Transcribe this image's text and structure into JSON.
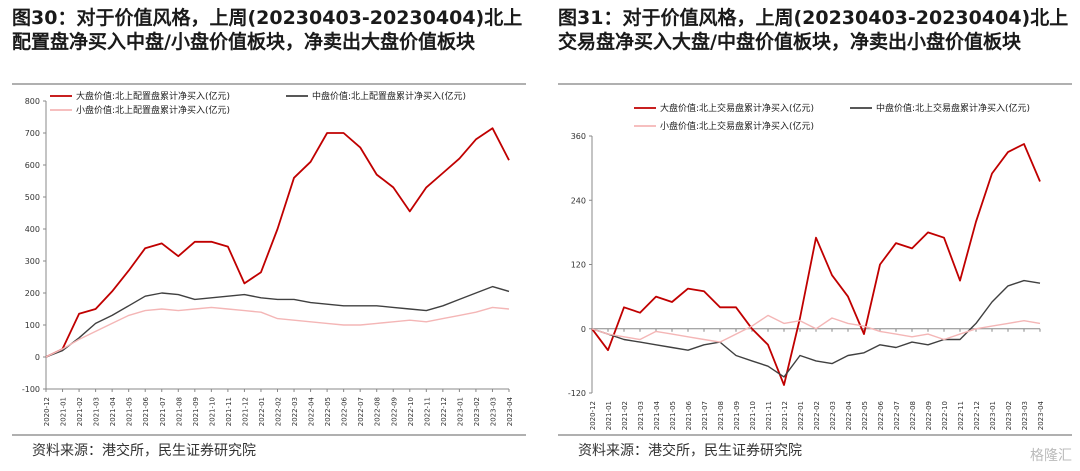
{
  "panels": [
    {
      "title": "图30：对于价值风格，上周(20230403-20230404)北上配置盘净买入中盘/小盘价值板块，净卖出大盘价值板块",
      "source": "资料来源：港交所，民生证券研究院"
    },
    {
      "title": "图31：对于价值风格，上周(20230403-20230404)北上交易盘净买入大盘/中盘价值板块，净卖出小盘价值板块",
      "source": "资料来源：港交所，民生证券研究院"
    }
  ],
  "watermark": "格隆汇",
  "chart_data": [
    {
      "type": "line",
      "title": "",
      "ylim": [
        -100,
        800
      ],
      "yticks": [
        -100,
        0,
        100,
        200,
        300,
        400,
        500,
        600,
        700,
        800
      ],
      "xlabels": [
        "2020-12",
        "2021-01",
        "2021-02",
        "2021-03",
        "2021-04",
        "2021-05",
        "2021-06",
        "2021-07",
        "2021-08",
        "2021-09",
        "2021-10",
        "2021-11",
        "2021-12",
        "2022-01",
        "2022-02",
        "2022-03",
        "2022-04",
        "2022-05",
        "2022-06",
        "2022-07",
        "2022-08",
        "2022-09",
        "2022-10",
        "2022-11",
        "2022-12",
        "2023-01",
        "2023-02",
        "2023-03",
        "2023-04"
      ],
      "legend_placement": "top-left",
      "grid": false,
      "series": [
        {
          "name": "大盘价值:北上配置盘累计净买入(亿元)",
          "color": "#c00000",
          "values": [
            0,
            25,
            135,
            150,
            205,
            270,
            340,
            355,
            315,
            360,
            360,
            345,
            230,
            265,
            400,
            560,
            610,
            700,
            700,
            655,
            570,
            530,
            455,
            530,
            575,
            620,
            680,
            715,
            615
          ]
        },
        {
          "name": "中盘价值:北上配置盘累计净买入(亿元)",
          "color": "#404040",
          "values": [
            0,
            20,
            60,
            105,
            130,
            160,
            190,
            200,
            195,
            180,
            185,
            190,
            195,
            185,
            180,
            180,
            170,
            165,
            160,
            160,
            160,
            155,
            150,
            145,
            160,
            180,
            200,
            220,
            205
          ]
        },
        {
          "name": "小盘价值:北上配置盘累计净买入(亿元)",
          "color": "#f4b6b6",
          "values": [
            0,
            25,
            55,
            80,
            105,
            130,
            145,
            150,
            145,
            150,
            155,
            150,
            145,
            140,
            120,
            115,
            110,
            105,
            100,
            100,
            105,
            110,
            115,
            110,
            120,
            130,
            140,
            155,
            150
          ]
        }
      ]
    },
    {
      "type": "line",
      "title": "",
      "ylim": [
        -120,
        360
      ],
      "yticks": [
        -120,
        0,
        120,
        240,
        360
      ],
      "xlabels": [
        "2020-12",
        "2021-01",
        "2021-02",
        "2021-03",
        "2021-04",
        "2021-05",
        "2021-06",
        "2021-07",
        "2021-08",
        "2021-09",
        "2021-10",
        "2021-11",
        "2021-12",
        "2022-01",
        "2022-02",
        "2022-03",
        "2022-04",
        "2022-05",
        "2022-06",
        "2022-07",
        "2022-08",
        "2022-09",
        "2022-10",
        "2022-11",
        "2022-12",
        "2023-01",
        "2023-02",
        "2023-03",
        "2023-04"
      ],
      "legend_placement": "top-left",
      "grid": false,
      "series": [
        {
          "name": "大盘价值:北上交易盘累计净买入(亿元)",
          "color": "#c00000",
          "values": [
            0,
            -40,
            40,
            30,
            60,
            50,
            75,
            70,
            40,
            40,
            0,
            -30,
            -105,
            20,
            170,
            100,
            60,
            -10,
            120,
            160,
            150,
            180,
            170,
            90,
            200,
            290,
            330,
            345,
            275
          ]
        },
        {
          "name": "中盘价值:北上交易盘累计净买入(亿元)",
          "color": "#404040",
          "values": [
            0,
            -10,
            -20,
            -25,
            -30,
            -35,
            -40,
            -30,
            -25,
            -50,
            -60,
            -70,
            -90,
            -50,
            -60,
            -65,
            -50,
            -45,
            -30,
            -35,
            -25,
            -30,
            -20,
            -20,
            10,
            50,
            80,
            90,
            85
          ]
        },
        {
          "name": "小盘价值:北上交易盘累计净买入(亿元)",
          "color": "#f4b6b6",
          "values": [
            0,
            -10,
            -15,
            -20,
            -5,
            -10,
            -15,
            -20,
            -25,
            -10,
            5,
            25,
            10,
            15,
            0,
            20,
            10,
            5,
            -5,
            -10,
            -15,
            -10,
            -20,
            -10,
            0,
            5,
            10,
            15,
            10
          ]
        }
      ]
    }
  ]
}
